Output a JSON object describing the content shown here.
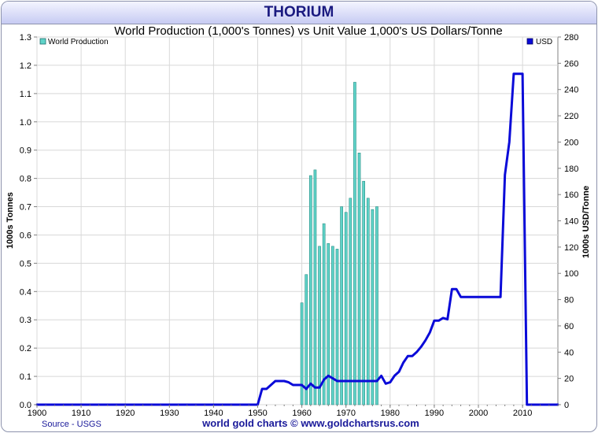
{
  "chart_data": {
    "type": "bar",
    "title": "THORIUM",
    "subtitle": "World Production (1,000's Tonnes) vs Unit Value 1,000's US Dollars/Tonne",
    "ylabel_left": "1000s Tonnes",
    "ylabel_right": "1000s USD/Tonne",
    "xlim": [
      1900,
      2018
    ],
    "ylim_left": [
      0,
      1.3
    ],
    "ylim_right": [
      0,
      280
    ],
    "x_ticks": [
      1900,
      1910,
      1920,
      1930,
      1940,
      1950,
      1960,
      1970,
      1980,
      1990,
      2000,
      2010
    ],
    "y_ticks_left": [
      "0.0",
      "0.1",
      "0.2",
      "0.3",
      "0.4",
      "0.5",
      "0.6",
      "0.7",
      "0.8",
      "0.9",
      "1.0",
      "1.1",
      "1.2",
      "1.3"
    ],
    "y_ticks_right": [
      "0",
      "20",
      "40",
      "60",
      "80",
      "100",
      "120",
      "140",
      "160",
      "180",
      "200",
      "220",
      "240",
      "260",
      "280"
    ],
    "grid": true,
    "legend": [
      {
        "name": "World Production",
        "color": "#5fd3c8",
        "placement": "top-left"
      },
      {
        "name": "USD",
        "color": "#0a0ad8",
        "placement": "top-right"
      }
    ],
    "series": [
      {
        "name": "World Production",
        "axis": "left",
        "kind": "bar",
        "color": "#5fd3c8",
        "x": [
          1960,
          1961,
          1962,
          1963,
          1964,
          1965,
          1966,
          1967,
          1968,
          1969,
          1970,
          1971,
          1972,
          1973,
          1974,
          1975,
          1976,
          1977
        ],
        "values": [
          0.36,
          0.46,
          0.81,
          0.83,
          0.56,
          0.64,
          0.57,
          0.56,
          0.55,
          0.7,
          0.68,
          0.73,
          1.14,
          0.89,
          0.79,
          0.73,
          0.69,
          0.7
        ]
      },
      {
        "name": "USD",
        "axis": "right",
        "kind": "line",
        "color": "#0a0ad8",
        "x": [
          1900,
          1950,
          1951,
          1952,
          1953,
          1954,
          1955,
          1956,
          1957,
          1958,
          1959,
          1960,
          1961,
          1962,
          1963,
          1964,
          1965,
          1966,
          1967,
          1968,
          1969,
          1970,
          1971,
          1972,
          1973,
          1974,
          1975,
          1976,
          1977,
          1978,
          1979,
          1980,
          1981,
          1982,
          1983,
          1984,
          1985,
          1986,
          1987,
          1988,
          1989,
          1990,
          1991,
          1992,
          1993,
          1994,
          1995,
          1996,
          1997,
          1998,
          1999,
          2000,
          2001,
          2002,
          2003,
          2004,
          2005,
          2006,
          2007,
          2008,
          2009,
          2010,
          2011,
          2012,
          2013,
          2014,
          2015,
          2016,
          2017,
          2018
        ],
        "values": [
          0,
          0,
          12,
          12,
          15,
          18,
          18,
          18,
          17,
          15,
          15,
          15,
          12,
          16,
          13,
          13,
          19,
          22,
          20,
          18,
          18,
          18,
          18,
          18,
          18,
          18,
          18,
          18,
          18,
          22,
          16,
          17,
          22,
          25,
          32,
          37,
          37,
          40,
          44,
          49,
          55,
          64,
          64,
          66,
          65,
          88,
          88,
          82,
          82,
          82,
          82,
          82,
          82,
          82,
          82,
          82,
          82,
          175,
          200,
          252,
          252,
          252,
          0,
          0,
          0,
          0,
          0,
          0,
          0,
          0
        ]
      }
    ]
  },
  "source_label": "Source - USGS",
  "footer": "world gold charts © www.goldchartsrus.com"
}
